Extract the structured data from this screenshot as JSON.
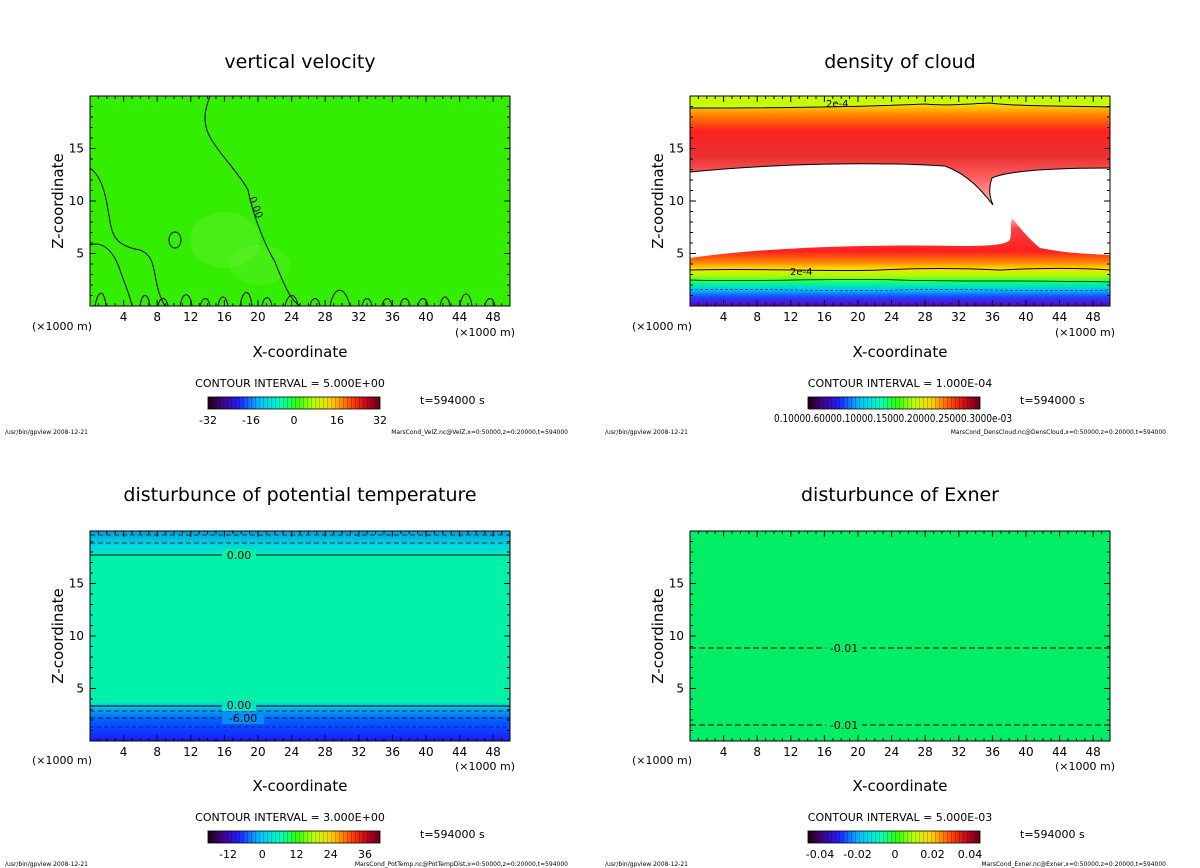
{
  "panels": [
    {
      "title": "vertical velocity",
      "xlabel": "X-coordinate",
      "ylabel": "Z-coordinate",
      "xunit": "(×1000 m)",
      "xticks": [
        "4",
        "8",
        "12",
        "16",
        "20",
        "24",
        "28",
        "32",
        "36",
        "40",
        "44",
        "48"
      ],
      "yticks": [
        "5",
        "10",
        "15"
      ],
      "contour_interval": "CONTOUR INTERVAL = 5.000E+00",
      "time_label": "t=594000 s",
      "colorbar_labels": [
        "-32",
        "-16",
        "0",
        "16",
        "32"
      ],
      "footer_left": "/usr/bin/gpview  2008-12-21",
      "footer_right": "MarsCond_VelZ.nc@VelZ,x=0:50000,z=0:20000,t=594000",
      "contour_labels": [
        {
          "text": "0.00"
        }
      ],
      "fill_color": "#33ee00"
    },
    {
      "title": "density of cloud",
      "xlabel": "X-coordinate",
      "ylabel": "Z-coordinate",
      "xunit": "(×1000 m)",
      "xticks": [
        "4",
        "8",
        "12",
        "16",
        "20",
        "24",
        "28",
        "32",
        "36",
        "40",
        "44",
        "48"
      ],
      "yticks": [
        "5",
        "10",
        "15"
      ],
      "contour_interval": "CONTOUR INTERVAL = 1.000E-04",
      "time_label": "t=594000 s",
      "colorbar_text": "0.10000.60000.10000.15000.20000.25000.3000e-03",
      "footer_left": "/usr/bin/gpview  2008-12-21",
      "footer_right": "MarsCond_DensCloud.nc@DensCloud,x=0:50000,z=0:20000,t=594000",
      "contour_labels": [
        {
          "text": "2e-4"
        },
        {
          "text": "2e-4"
        }
      ]
    },
    {
      "title": "disturbunce of potential temperature",
      "xlabel": "X-coordinate",
      "ylabel": "Z-coordinate",
      "xunit": "(×1000 m)",
      "xticks": [
        "4",
        "8",
        "12",
        "16",
        "20",
        "24",
        "28",
        "32",
        "36",
        "40",
        "44",
        "48"
      ],
      "yticks": [
        "5",
        "10",
        "15"
      ],
      "contour_interval": "CONTOUR INTERVAL = 3.000E+00",
      "time_label": "t=594000 s",
      "colorbar_labels": [
        "-12",
        "0",
        "12",
        "24",
        "36"
      ],
      "footer_left": "/usr/bin/gpview  2008-12-21",
      "footer_right": "MarsCond_PotTemp.nc@PotTempDist,x=0:50000,z=0:20000,t=594000",
      "contour_labels": [
        {
          "text": "0.00"
        },
        {
          "text": "0.00"
        },
        {
          "text": "-6.00"
        }
      ],
      "fill_color": "#00f2a8"
    },
    {
      "title": "disturbunce of Exner",
      "xlabel": "X-coordinate",
      "ylabel": "Z-coordinate",
      "xunit": "(×1000 m)",
      "xticks": [
        "4",
        "8",
        "12",
        "16",
        "20",
        "24",
        "28",
        "32",
        "36",
        "40",
        "44",
        "48"
      ],
      "yticks": [
        "5",
        "10",
        "15"
      ],
      "contour_interval": "CONTOUR INTERVAL = 5.000E-03",
      "time_label": "t=594000 s",
      "colorbar_labels": [
        "-0.04",
        "-0.02",
        "0",
        "0.02",
        "0.04"
      ],
      "footer_left": "/usr/bin/gpview  2008-12-21",
      "footer_right": "MarsCond_Exner.nc@Exner,x=0:50000,z=0:20000,t=594000",
      "contour_labels": [
        {
          "text": "-0.01"
        },
        {
          "text": "-0.01"
        }
      ],
      "fill_color": "#00ee66"
    }
  ],
  "chart_data": [
    {
      "type": "heatmap",
      "title": "vertical velocity",
      "xlabel": "X-coordinate",
      "ylabel": "Z-coordinate",
      "xlim": [
        0,
        50
      ],
      "ylim": [
        0,
        20
      ],
      "contour_interval": 5.0,
      "colorbar_range": [
        -32,
        32
      ],
      "field_summary": "nearly uniform ~0 m/s with irregular 0.00 contours near ground and a wavy contour rising from x≈14 to top"
    },
    {
      "type": "heatmap",
      "title": "density of cloud",
      "xlabel": "X-coordinate",
      "ylabel": "Z-coordinate",
      "xlim": [
        0,
        50
      ],
      "ylim": [
        0,
        20
      ],
      "contour_interval": 0.0001,
      "bands": [
        {
          "z_range": [
            13.5,
            19.5
          ],
          "description": "upper cloud layer, peak ~1.5e-4"
        },
        {
          "z_range": [
            0.5,
            5.0
          ],
          "description": "lower cloud layer, peak increasing toward ground"
        }
      ]
    },
    {
      "type": "heatmap",
      "title": "disturbunce of potential temperature",
      "xlabel": "X-coordinate",
      "ylabel": "Z-coordinate",
      "xlim": [
        0,
        50
      ],
      "ylim": [
        0,
        20
      ],
      "contour_interval": 3.0,
      "colorbar_range": [
        -12,
        36
      ],
      "contours": [
        {
          "label": "0.00",
          "z": 17.7,
          "style": "solid"
        },
        {
          "label": "0.00",
          "z": 3.3,
          "style": "solid"
        },
        {
          "label": "-6.00",
          "z": 2.1,
          "style": "dashed"
        }
      ]
    },
    {
      "type": "heatmap",
      "title": "disturbunce of Exner",
      "xlabel": "X-coordinate",
      "ylabel": "Z-coordinate",
      "xlim": [
        0,
        50
      ],
      "ylim": [
        0,
        20
      ],
      "contour_interval": 0.005,
      "colorbar_range": [
        -0.04,
        0.04
      ],
      "contours": [
        {
          "label": "-0.01",
          "z": 8.9,
          "style": "dashed"
        },
        {
          "label": "-0.01",
          "z": 1.5,
          "style": "dashed"
        }
      ]
    }
  ]
}
